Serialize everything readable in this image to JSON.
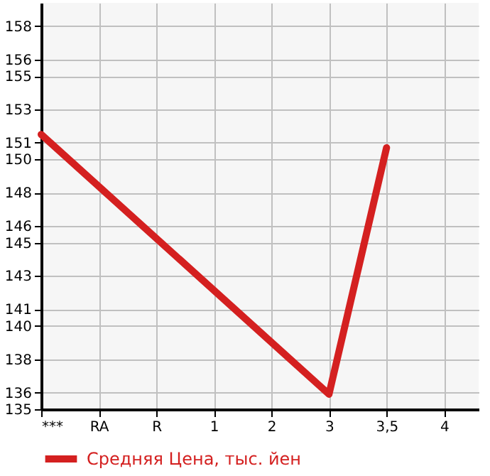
{
  "chart_data": {
    "type": "line",
    "categories": [
      "***",
      "RA",
      "R",
      "1",
      "2",
      "3",
      "3,5",
      "4"
    ],
    "series": [
      {
        "name": "Средняя Цена, тыс. йен",
        "color": "#d42020",
        "values": [
          151.5,
          null,
          null,
          null,
          null,
          135.9,
          150.7,
          null
        ]
      }
    ],
    "ylim": [
      135,
      159.4
    ],
    "yticks": [
      135,
      136,
      138,
      140,
      141,
      143,
      145,
      146,
      148,
      150,
      151,
      153,
      155,
      156,
      158
    ],
    "grid": true,
    "legend": "bottom",
    "marker": "none",
    "line_style": "solid"
  }
}
